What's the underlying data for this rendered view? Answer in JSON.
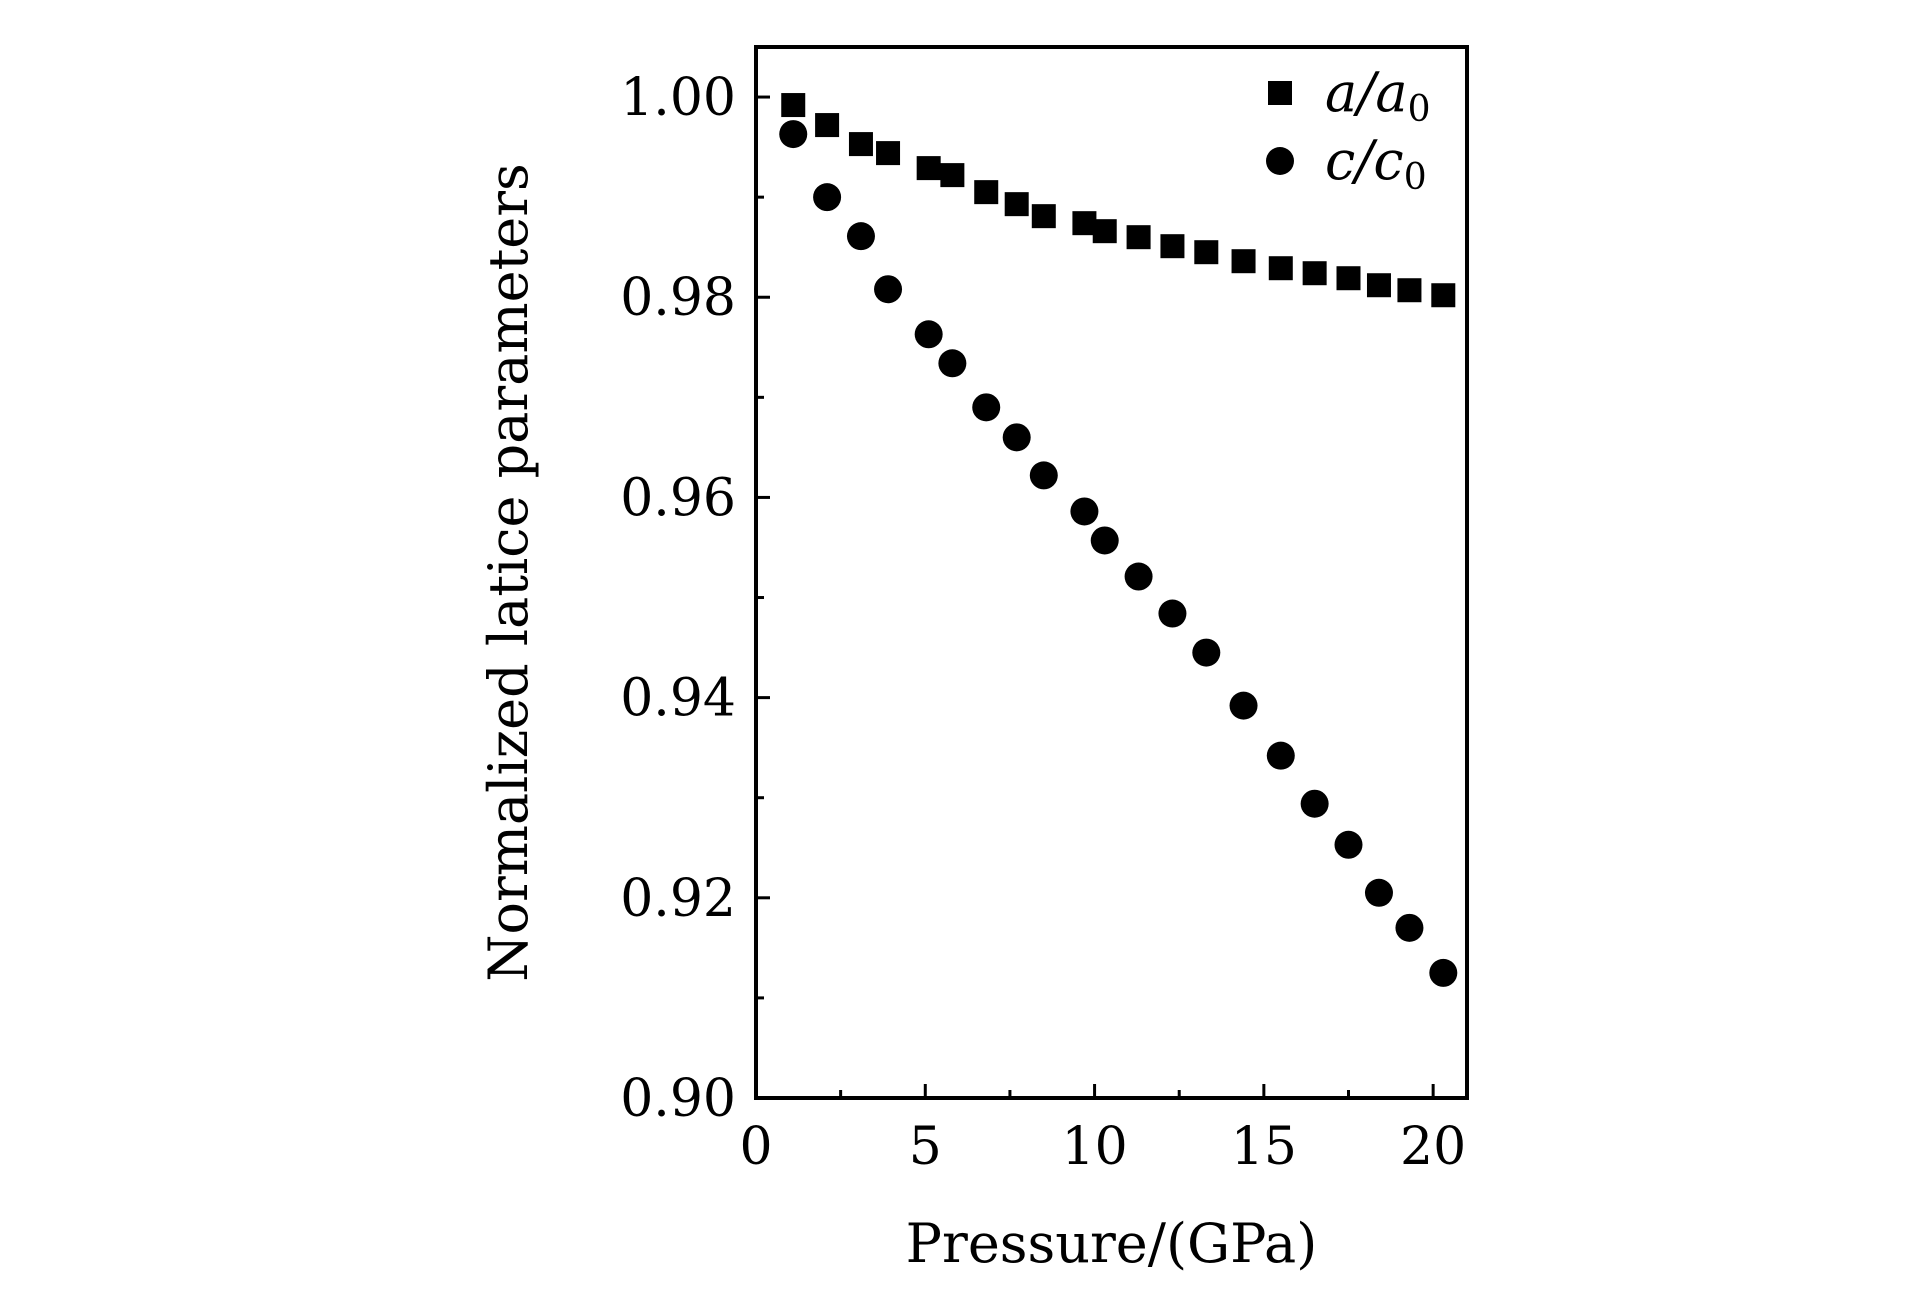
{
  "chart_data": {
    "type": "scatter",
    "title": "",
    "xlabel": "Pressure/(GPa)",
    "ylabel": "Normalized latice parameters",
    "xlim": [
      0,
      21
    ],
    "ylim": [
      0.9,
      1.005
    ],
    "xticks": [
      0,
      5,
      10,
      15,
      20
    ],
    "xtick_labels": [
      "0",
      "5",
      "10",
      "15",
      "20"
    ],
    "yticks": [
      0.9,
      0.92,
      0.94,
      0.96,
      0.98,
      1.0
    ],
    "ytick_labels": [
      "0.90",
      "0.92",
      "0.94",
      "0.96",
      "0.98",
      "1.00"
    ],
    "legend_position": "top-right",
    "grid": false,
    "series": [
      {
        "name": "a/a0",
        "legend_main": "a/a",
        "legend_sub": "0",
        "marker": "square",
        "x": [
          1.1,
          2.1,
          3.1,
          3.9,
          5.1,
          5.8,
          6.8,
          7.7,
          8.5,
          9.7,
          10.3,
          11.3,
          12.3,
          13.3,
          14.4,
          15.5,
          16.5,
          17.5,
          18.4,
          19.3,
          20.3
        ],
        "y": [
          0.9992,
          0.9972,
          0.9953,
          0.9944,
          0.9929,
          0.9922,
          0.9905,
          0.9893,
          0.9881,
          0.9874,
          0.9866,
          0.986,
          0.9851,
          0.9845,
          0.9836,
          0.9829,
          0.9824,
          0.9819,
          0.9812,
          0.9807,
          0.9802
        ]
      },
      {
        "name": "c/c0",
        "legend_main": "c/c",
        "legend_sub": "0",
        "marker": "circle",
        "x": [
          1.1,
          2.1,
          3.1,
          3.9,
          5.1,
          5.8,
          6.8,
          7.7,
          8.5,
          9.7,
          10.3,
          11.3,
          12.3,
          13.3,
          14.4,
          15.5,
          16.5,
          17.5,
          18.4,
          19.3,
          20.3
        ],
        "y": [
          0.9963,
          0.99,
          0.9861,
          0.9808,
          0.9763,
          0.9734,
          0.969,
          0.966,
          0.9622,
          0.9586,
          0.9557,
          0.9521,
          0.9484,
          0.9445,
          0.9392,
          0.9342,
          0.9294,
          0.9253,
          0.9205,
          0.917,
          0.9125
        ]
      }
    ]
  }
}
